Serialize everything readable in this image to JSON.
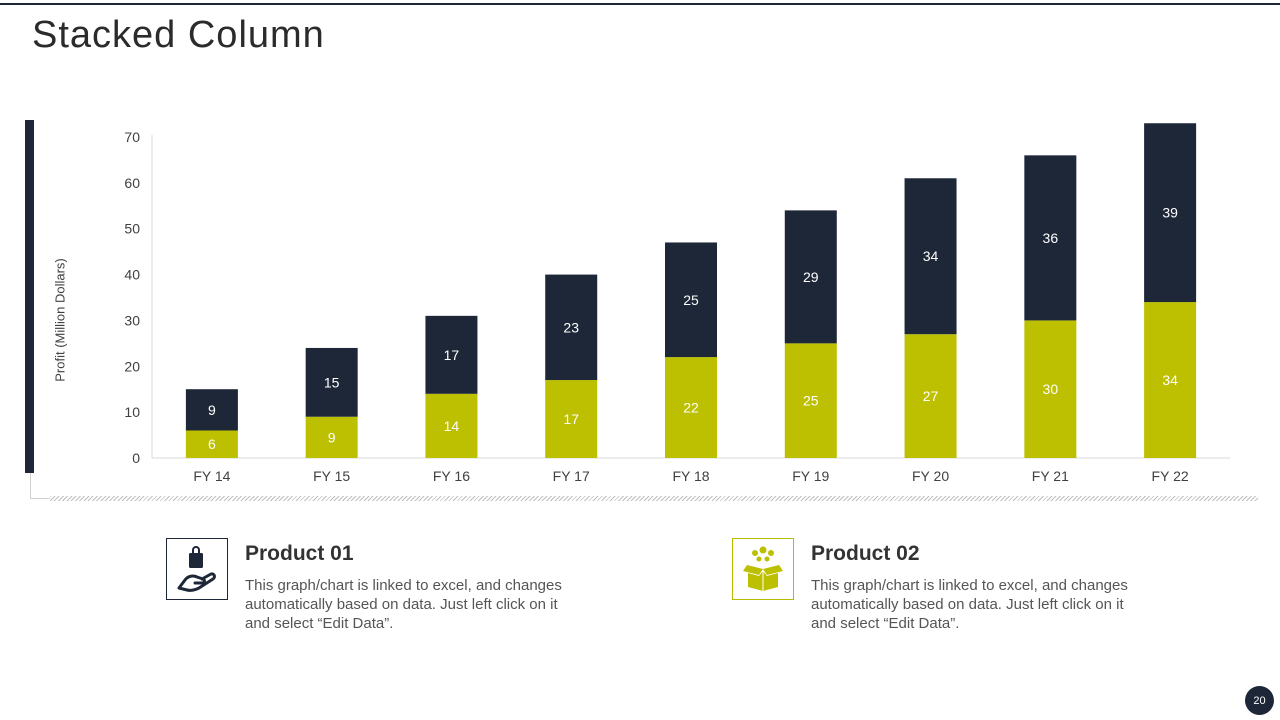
{
  "slide": {
    "title": "Stacked Column",
    "page_number": "20"
  },
  "colors": {
    "dark": "#1e2738",
    "accent": "#bcc000"
  },
  "chart_data": {
    "type": "bar",
    "stacked": true,
    "title": "",
    "xlabel": "",
    "ylabel": "Profit  (Million Dollars)",
    "ylim": [
      0,
      70
    ],
    "yticks": [
      0,
      10,
      20,
      30,
      40,
      50,
      60,
      70
    ],
    "categories": [
      "FY 14",
      "FY 15",
      "FY 16",
      "FY 17",
      "FY 18",
      "FY 19",
      "FY 20",
      "FY 21",
      "FY 22"
    ],
    "series": [
      {
        "name": "Product 01",
        "color": "#bcc000",
        "values": [
          6,
          9,
          14,
          17,
          22,
          25,
          27,
          30,
          34
        ]
      },
      {
        "name": "Product 02",
        "color": "#1e2738",
        "values": [
          9,
          15,
          17,
          23,
          25,
          29,
          34,
          36,
          39
        ]
      }
    ]
  },
  "products": [
    {
      "title": "Product 01",
      "description": "This graph/chart is linked to excel, and changes automatically based on data. Just left click on it and select “Edit Data”.",
      "icon": "hand-holding-bag-icon"
    },
    {
      "title": "Product 02",
      "description": "This graph/chart is linked to excel, and changes automatically based on data. Just left click on it and select “Edit Data”.",
      "icon": "open-box-icon"
    }
  ]
}
